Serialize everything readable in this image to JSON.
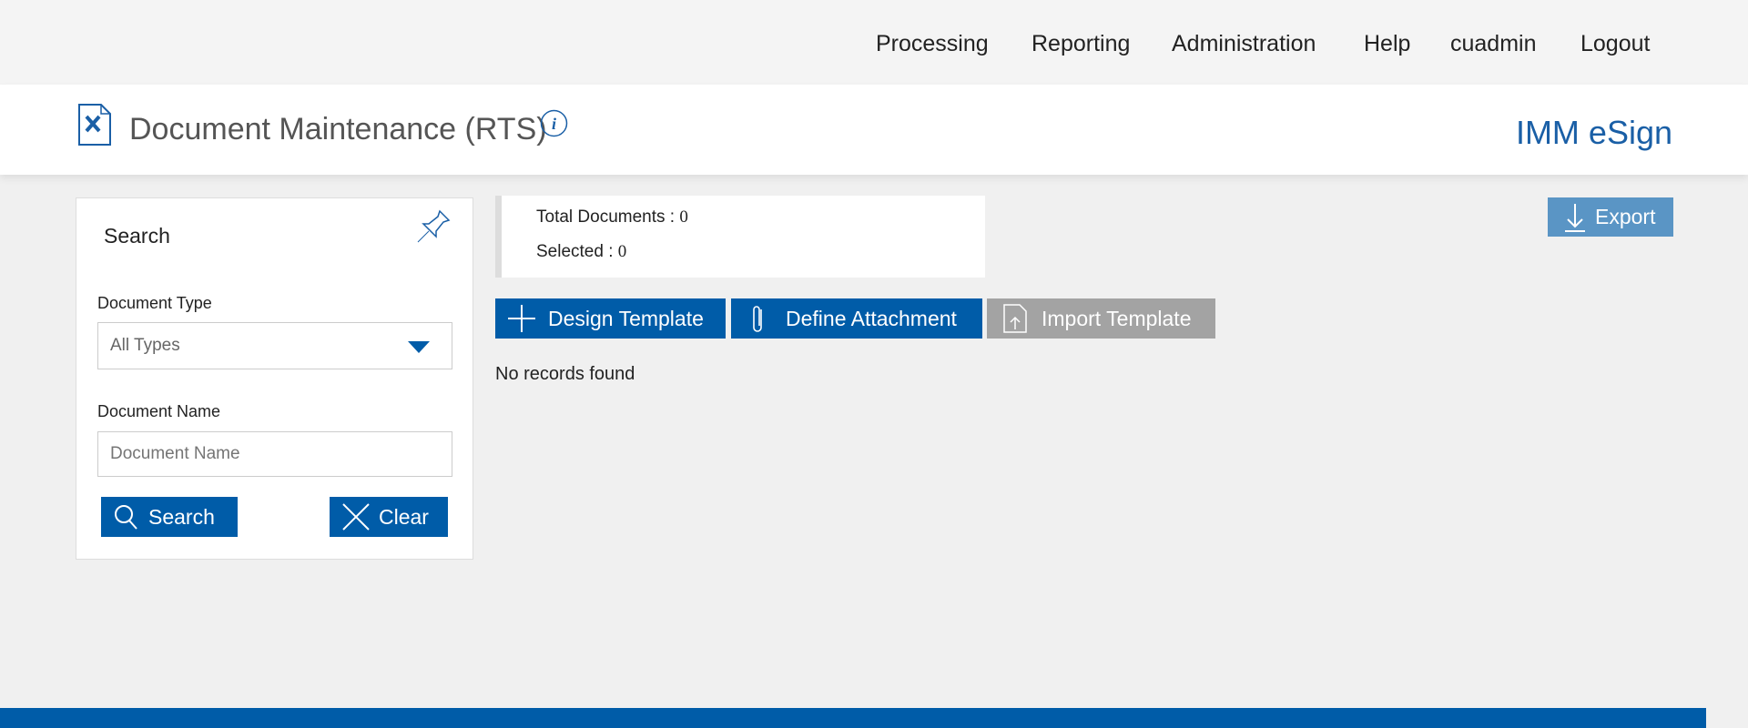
{
  "nav": {
    "items": [
      "Processing",
      "Reporting",
      "Administration",
      "Help",
      "cuadmin",
      "Logout"
    ]
  },
  "header": {
    "title": "Document Maintenance (RTS)",
    "brand": "IMM eSign"
  },
  "search_panel": {
    "title": "Search",
    "doc_type_label": "Document Type",
    "doc_type_value": "All Types",
    "doc_name_label": "Document Name",
    "doc_name_placeholder": "Document Name",
    "search_label": "Search",
    "clear_label": "Clear"
  },
  "summary": {
    "total_label": "Total Documents : ",
    "total_value": "0",
    "selected_label": "Selected : ",
    "selected_value": "0"
  },
  "toolbar": {
    "design_label": "Design Template",
    "define_label": "Define Attachment",
    "import_label": "Import Template",
    "export_label": "Export"
  },
  "results": {
    "empty_text": "No records found"
  },
  "colors": {
    "primary": "#005ca8",
    "export": "#5a95c5",
    "disabled": "#a3a3a3",
    "brand": "#1a5fa6"
  }
}
